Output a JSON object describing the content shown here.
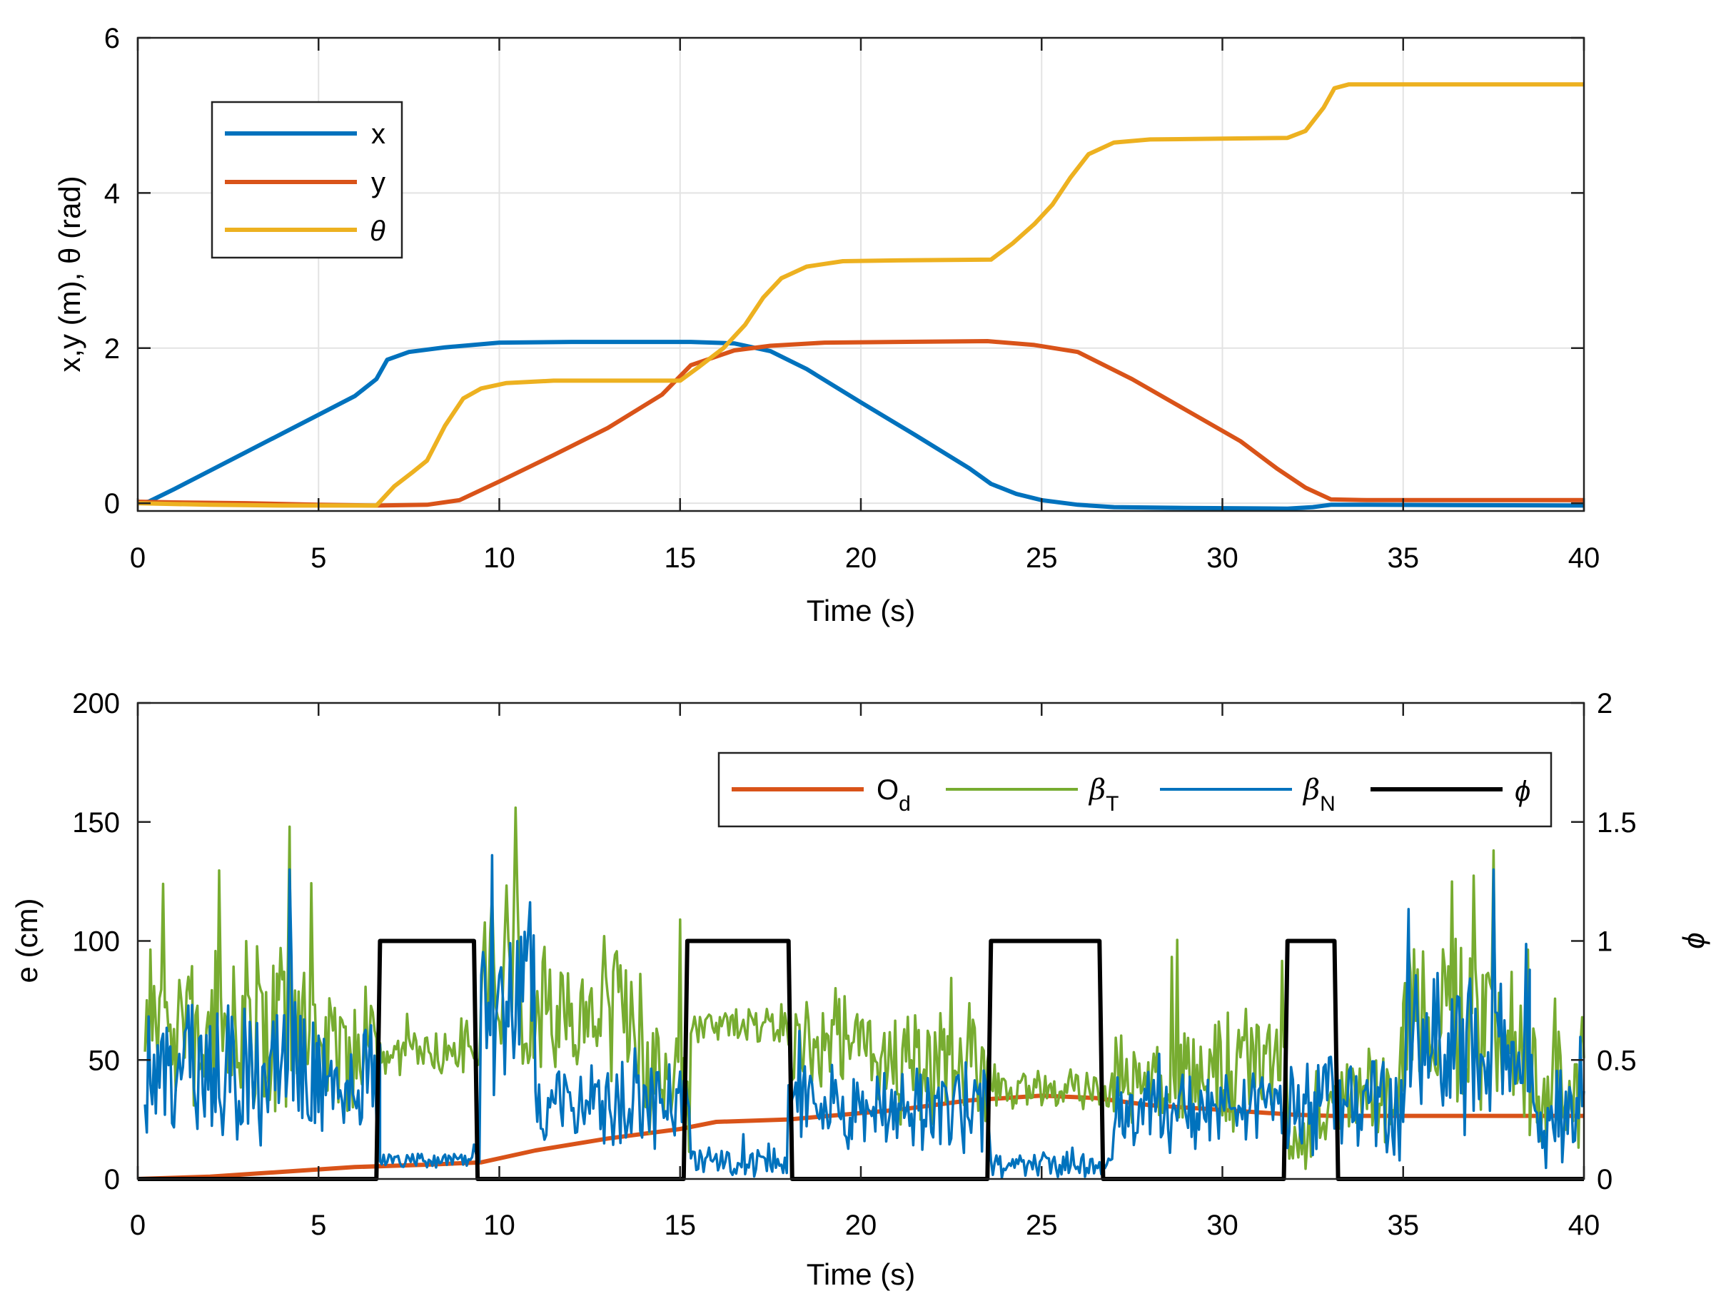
{
  "chart_data": [
    {
      "type": "line",
      "xlabel": "Time (s)",
      "ylabel": "x,y (m), θ (rad)",
      "xlim": [
        0,
        40
      ],
      "ylim": [
        -0.1,
        6
      ],
      "xticks": [
        0,
        5,
        10,
        15,
        20,
        25,
        30,
        35,
        40
      ],
      "yticks": [
        0,
        2,
        4,
        6
      ],
      "grid": true,
      "legend": {
        "placement": "top-left",
        "entries": [
          "x",
          "y",
          "θ"
        ]
      },
      "series": [
        {
          "name": "x",
          "color": "#0072BD",
          "points": [
            [
              0,
              0
            ],
            [
              0.3,
              0.02
            ],
            [
              1,
              0.18
            ],
            [
              2,
              0.42
            ],
            [
              3,
              0.66
            ],
            [
              4,
              0.9
            ],
            [
              5,
              1.14
            ],
            [
              6,
              1.38
            ],
            [
              6.6,
              1.6
            ],
            [
              6.9,
              1.85
            ],
            [
              7.5,
              1.95
            ],
            [
              8.5,
              2.01
            ],
            [
              10,
              2.07
            ],
            [
              12,
              2.08
            ],
            [
              15.3,
              2.08
            ],
            [
              16.5,
              2.06
            ],
            [
              17.5,
              1.96
            ],
            [
              18.5,
              1.73
            ],
            [
              20,
              1.3
            ],
            [
              21.5,
              0.88
            ],
            [
              23,
              0.45
            ],
            [
              23.6,
              0.25
            ],
            [
              24.3,
              0.12
            ],
            [
              25,
              0.04
            ],
            [
              26,
              -0.02
            ],
            [
              27,
              -0.05
            ],
            [
              29,
              -0.06
            ],
            [
              31.8,
              -0.07
            ],
            [
              32.5,
              -0.05
            ],
            [
              33,
              -0.02
            ],
            [
              34,
              -0.02
            ],
            [
              40,
              -0.03
            ]
          ]
        },
        {
          "name": "y",
          "color": "#D95319",
          "points": [
            [
              0,
              0.02
            ],
            [
              1,
              0.01
            ],
            [
              3,
              0
            ],
            [
              5,
              -0.02
            ],
            [
              6.6,
              -0.03
            ],
            [
              8,
              -0.02
            ],
            [
              8.9,
              0.04
            ],
            [
              10,
              0.28
            ],
            [
              11.5,
              0.62
            ],
            [
              13,
              0.97
            ],
            [
              14.5,
              1.4
            ],
            [
              15.3,
              1.78
            ],
            [
              16.5,
              1.97
            ],
            [
              17.5,
              2.03
            ],
            [
              19,
              2.07
            ],
            [
              21,
              2.08
            ],
            [
              23.5,
              2.09
            ],
            [
              24.8,
              2.04
            ],
            [
              26,
              1.95
            ],
            [
              27.5,
              1.6
            ],
            [
              29,
              1.2
            ],
            [
              30.5,
              0.8
            ],
            [
              31.5,
              0.45
            ],
            [
              32.3,
              0.2
            ],
            [
              33,
              0.05
            ],
            [
              34,
              0.04
            ],
            [
              40,
              0.04
            ]
          ]
        },
        {
          "name": "θ",
          "color": "#EDB120",
          "points": [
            [
              0,
              0
            ],
            [
              2,
              -0.02
            ],
            [
              4,
              -0.03
            ],
            [
              6.6,
              -0.03
            ],
            [
              7.1,
              0.22
            ],
            [
              7.6,
              0.4
            ],
            [
              8,
              0.55
            ],
            [
              8.5,
              1
            ],
            [
              9,
              1.35
            ],
            [
              9.5,
              1.48
            ],
            [
              10.2,
              1.55
            ],
            [
              11.5,
              1.58
            ],
            [
              15,
              1.58
            ],
            [
              15.5,
              1.75
            ],
            [
              16.2,
              2
            ],
            [
              16.8,
              2.3
            ],
            [
              17.3,
              2.65
            ],
            [
              17.8,
              2.9
            ],
            [
              18.5,
              3.05
            ],
            [
              19.5,
              3.12
            ],
            [
              21,
              3.13
            ],
            [
              23.6,
              3.14
            ],
            [
              24.2,
              3.35
            ],
            [
              24.8,
              3.6
            ],
            [
              25.3,
              3.85
            ],
            [
              25.8,
              4.2
            ],
            [
              26.3,
              4.5
            ],
            [
              27,
              4.65
            ],
            [
              28,
              4.69
            ],
            [
              30,
              4.7
            ],
            [
              31.8,
              4.71
            ],
            [
              32.3,
              4.8
            ],
            [
              32.8,
              5.1
            ],
            [
              33.1,
              5.35
            ],
            [
              33.5,
              5.4
            ],
            [
              40,
              5.4
            ]
          ]
        }
      ]
    },
    {
      "type": "line",
      "xlabel": "Time (s)",
      "ylabel": "e (cm)",
      "ylabel_right": "ϕ",
      "xlim": [
        0,
        40
      ],
      "ylim": [
        0,
        200
      ],
      "ylim_right": [
        0,
        2
      ],
      "xticks": [
        0,
        5,
        10,
        15,
        20,
        25,
        30,
        35,
        40
      ],
      "yticks": [
        0,
        50,
        100,
        150,
        200
      ],
      "yticks_right": [
        "0",
        "0.5",
        "1",
        "1.5",
        "2"
      ],
      "grid": false,
      "legend": {
        "placement": "top-right",
        "entries": [
          {
            "base": "O",
            "sub": "d",
            "greek": false
          },
          {
            "base": "β",
            "sub": "T",
            "greek": true
          },
          {
            "base": "β",
            "sub": "N",
            "greek": true
          },
          {
            "base": "ϕ",
            "sub": "",
            "greek": true
          }
        ]
      },
      "series": [
        {
          "name": "Od",
          "axis": "left",
          "color": "#D95319",
          "points": [
            [
              0,
              0
            ],
            [
              2,
              1
            ],
            [
              4,
              3
            ],
            [
              6,
              5
            ],
            [
              8,
              6
            ],
            [
              9.5,
              7
            ],
            [
              11,
              12
            ],
            [
              13,
              17
            ],
            [
              15,
              21
            ],
            [
              16,
              24
            ],
            [
              18,
              25
            ],
            [
              21,
              29
            ],
            [
              23,
              33
            ],
            [
              25,
              35
            ],
            [
              26.5,
              34
            ],
            [
              28,
              31
            ],
            [
              30,
              29
            ],
            [
              32,
              27
            ],
            [
              33,
              26.5
            ],
            [
              40,
              26.5
            ]
          ]
        },
        {
          "name": "βT",
          "axis": "left",
          "color": "#77AC30",
          "noisy": {
            "seed": 7,
            "segments": [
              [
                0.2,
                5,
                60,
                28
              ],
              [
                5,
                6.7,
                55,
                22
              ],
              [
                6.7,
                9.5,
                52,
                8
              ],
              [
                9.5,
                10.6,
                85,
                30
              ],
              [
                10.6,
                14,
                70,
                22
              ],
              [
                14,
                15.3,
                45,
                25
              ],
              [
                15.3,
                18,
                65,
                6
              ],
              [
                18,
                21,
                55,
                20
              ],
              [
                21,
                23.6,
                45,
                22
              ],
              [
                23.6,
                27,
                38,
                7
              ],
              [
                27,
                28.5,
                40,
                15
              ],
              [
                28.5,
                31.8,
                45,
                22
              ],
              [
                31.8,
                33.2,
                22,
                15
              ],
              [
                33.2,
                35,
                35,
                18
              ],
              [
                35,
                38.5,
                65,
                30
              ],
              [
                38.5,
                40,
                35,
                20
              ]
            ]
          },
          "peaks": [
            [
              4.2,
              148
            ],
            [
              10.5,
              120
            ],
            [
              37.5,
              138
            ],
            [
              15,
              109
            ],
            [
              0.7,
              124
            ]
          ]
        },
        {
          "name": "βN",
          "axis": "left",
          "color": "#0072BD",
          "noisy": {
            "seed": 13,
            "segments": [
              [
                0.2,
                5,
                45,
                25
              ],
              [
                5,
                6.7,
                40,
                22
              ],
              [
                6.7,
                9.5,
                8,
                3
              ],
              [
                9.5,
                11,
                70,
                30
              ],
              [
                11,
                15.3,
                30,
                15
              ],
              [
                15.3,
                18,
                7,
                5
              ],
              [
                18,
                23.6,
                30,
                15
              ],
              [
                23.6,
                27,
                5,
                4
              ],
              [
                27,
                31.8,
                28,
                14
              ],
              [
                31.8,
                33.2,
                30,
                20
              ],
              [
                33.2,
                35,
                30,
                18
              ],
              [
                35,
                38.5,
                55,
                30
              ],
              [
                38.5,
                40,
                30,
                20
              ]
            ]
          },
          "peaks": [
            [
              4.2,
              130
            ],
            [
              9.8,
              136
            ],
            [
              37.5,
              130
            ]
          ]
        },
        {
          "name": "ϕ",
          "axis": "right",
          "color": "#000000",
          "points": [
            [
              0,
              0
            ],
            [
              6.6,
              0
            ],
            [
              6.7,
              1
            ],
            [
              9.3,
              1
            ],
            [
              9.4,
              0
            ],
            [
              15.1,
              0
            ],
            [
              15.2,
              1
            ],
            [
              18,
              1
            ],
            [
              18.1,
              0
            ],
            [
              23.5,
              0
            ],
            [
              23.6,
              1
            ],
            [
              26.6,
              1
            ],
            [
              26.7,
              0
            ],
            [
              31.7,
              0
            ],
            [
              31.8,
              1
            ],
            [
              33.1,
              1
            ],
            [
              33.2,
              0
            ],
            [
              40,
              0
            ]
          ]
        }
      ]
    }
  ]
}
